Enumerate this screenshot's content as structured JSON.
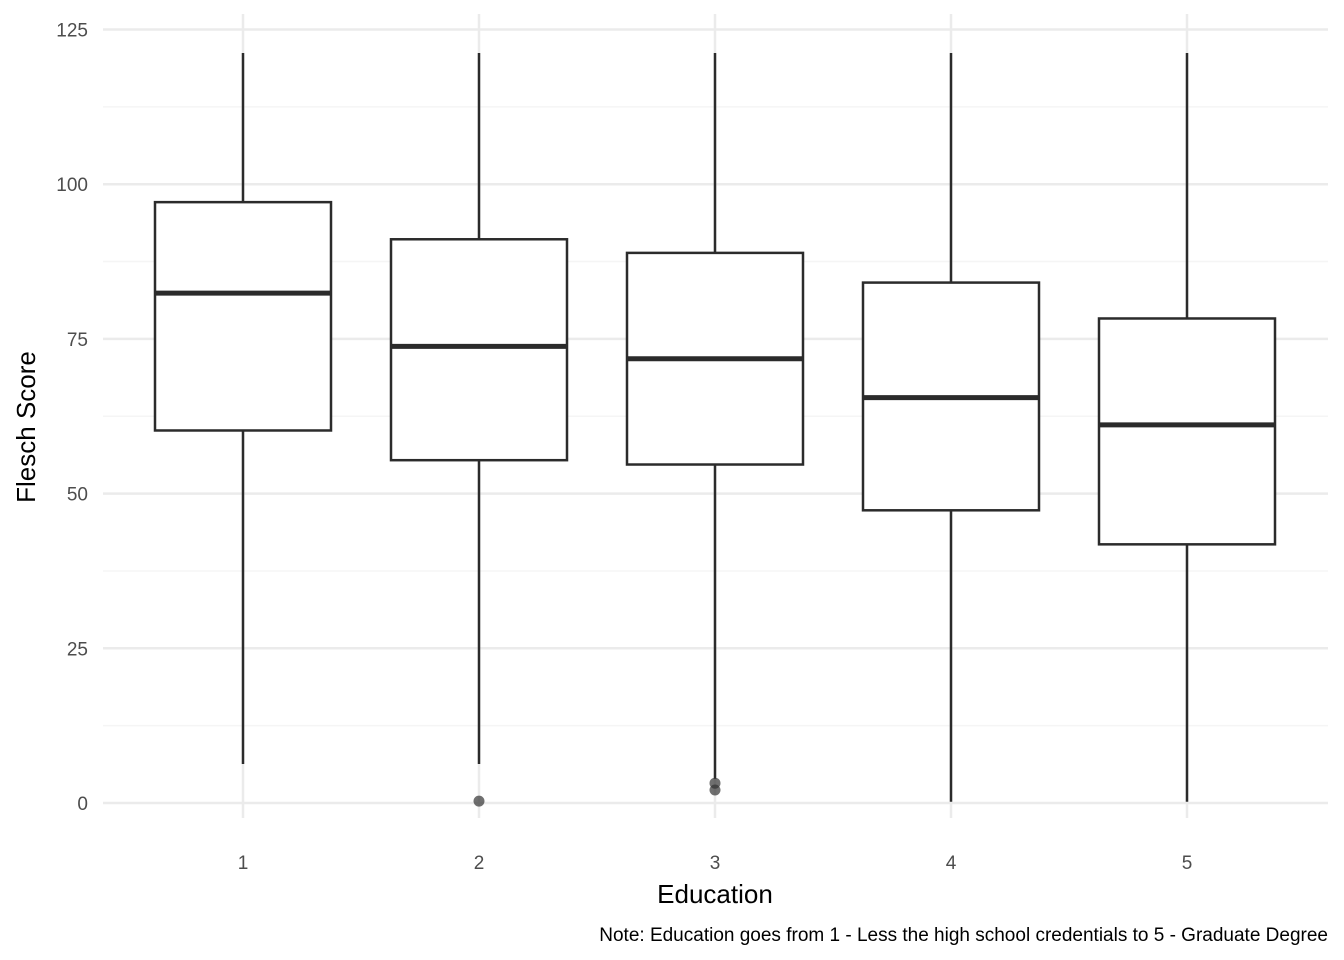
{
  "chart_data": {
    "type": "boxplot",
    "title": "",
    "xlabel": "Education",
    "ylabel": "Flesch Score",
    "caption": "Note: Education goes from 1 - Less the high school credentials to 5 - Graduate Degree",
    "categories": [
      "1",
      "2",
      "3",
      "4",
      "5"
    ],
    "ylim": [
      -6,
      127
    ],
    "yticks": [
      0,
      25,
      50,
      75,
      100,
      125
    ],
    "yticks_minor": [
      12.5,
      37.5,
      62.5,
      87.5,
      112.5
    ],
    "grid": true,
    "boxes": [
      {
        "category": "1",
        "whisker_low": 6.3,
        "q1": 60.2,
        "median": 82.4,
        "q3": 97.1,
        "whisker_high": 121.2,
        "outliers": []
      },
      {
        "category": "2",
        "whisker_low": 6.3,
        "q1": 55.4,
        "median": 73.8,
        "q3": 91.1,
        "whisker_high": 121.2,
        "outliers": [
          0.3
        ]
      },
      {
        "category": "3",
        "whisker_low": 3.9,
        "q1": 54.7,
        "median": 71.8,
        "q3": 88.9,
        "whisker_high": 121.2,
        "outliers": [
          3.2,
          2.1
        ]
      },
      {
        "category": "4",
        "whisker_low": 0.2,
        "q1": 47.3,
        "median": 65.5,
        "q3": 84.1,
        "whisker_high": 121.2,
        "outliers": []
      },
      {
        "category": "5",
        "whisker_low": 0.2,
        "q1": 41.8,
        "median": 61.1,
        "q3": 78.3,
        "whisker_high": 121.2,
        "outliers": []
      }
    ],
    "colors": {
      "box_stroke": "#2b2b2b",
      "grid_major": "#ebebeb",
      "grid_minor": "#f5f5f5",
      "outlier": "#333333"
    }
  }
}
